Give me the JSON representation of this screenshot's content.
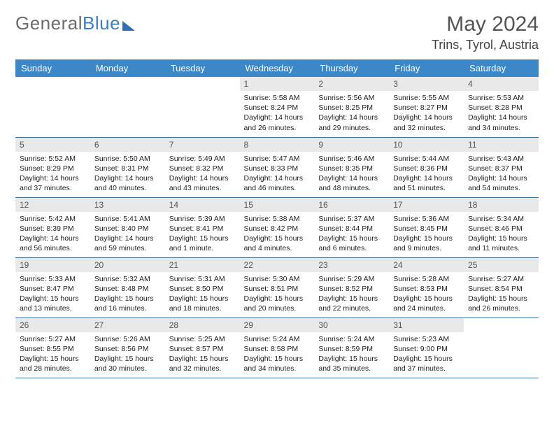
{
  "branding": {
    "word1": "General",
    "word2": "Blue"
  },
  "header": {
    "title": "May 2024",
    "location": "Trins, Tyrol, Austria"
  },
  "colors": {
    "header_bg": "#3b87c8",
    "header_text": "#ffffff",
    "daynum_bg": "#e9e9e9",
    "row_border": "#3b6fa0",
    "title_text": "#555555",
    "body_text": "#222222",
    "logo_gray": "#6b6b6b",
    "logo_blue": "#3b7fc4"
  },
  "weekdays": [
    "Sunday",
    "Monday",
    "Tuesday",
    "Wednesday",
    "Thursday",
    "Friday",
    "Saturday"
  ],
  "weeks": [
    [
      null,
      null,
      null,
      {
        "n": "1",
        "sr": "5:58 AM",
        "ss": "8:24 PM",
        "dl": "14 hours and 26 minutes."
      },
      {
        "n": "2",
        "sr": "5:56 AM",
        "ss": "8:25 PM",
        "dl": "14 hours and 29 minutes."
      },
      {
        "n": "3",
        "sr": "5:55 AM",
        "ss": "8:27 PM",
        "dl": "14 hours and 32 minutes."
      },
      {
        "n": "4",
        "sr": "5:53 AM",
        "ss": "8:28 PM",
        "dl": "14 hours and 34 minutes."
      }
    ],
    [
      {
        "n": "5",
        "sr": "5:52 AM",
        "ss": "8:29 PM",
        "dl": "14 hours and 37 minutes."
      },
      {
        "n": "6",
        "sr": "5:50 AM",
        "ss": "8:31 PM",
        "dl": "14 hours and 40 minutes."
      },
      {
        "n": "7",
        "sr": "5:49 AM",
        "ss": "8:32 PM",
        "dl": "14 hours and 43 minutes."
      },
      {
        "n": "8",
        "sr": "5:47 AM",
        "ss": "8:33 PM",
        "dl": "14 hours and 46 minutes."
      },
      {
        "n": "9",
        "sr": "5:46 AM",
        "ss": "8:35 PM",
        "dl": "14 hours and 48 minutes."
      },
      {
        "n": "10",
        "sr": "5:44 AM",
        "ss": "8:36 PM",
        "dl": "14 hours and 51 minutes."
      },
      {
        "n": "11",
        "sr": "5:43 AM",
        "ss": "8:37 PM",
        "dl": "14 hours and 54 minutes."
      }
    ],
    [
      {
        "n": "12",
        "sr": "5:42 AM",
        "ss": "8:39 PM",
        "dl": "14 hours and 56 minutes."
      },
      {
        "n": "13",
        "sr": "5:41 AM",
        "ss": "8:40 PM",
        "dl": "14 hours and 59 minutes."
      },
      {
        "n": "14",
        "sr": "5:39 AM",
        "ss": "8:41 PM",
        "dl": "15 hours and 1 minute."
      },
      {
        "n": "15",
        "sr": "5:38 AM",
        "ss": "8:42 PM",
        "dl": "15 hours and 4 minutes."
      },
      {
        "n": "16",
        "sr": "5:37 AM",
        "ss": "8:44 PM",
        "dl": "15 hours and 6 minutes."
      },
      {
        "n": "17",
        "sr": "5:36 AM",
        "ss": "8:45 PM",
        "dl": "15 hours and 9 minutes."
      },
      {
        "n": "18",
        "sr": "5:34 AM",
        "ss": "8:46 PM",
        "dl": "15 hours and 11 minutes."
      }
    ],
    [
      {
        "n": "19",
        "sr": "5:33 AM",
        "ss": "8:47 PM",
        "dl": "15 hours and 13 minutes."
      },
      {
        "n": "20",
        "sr": "5:32 AM",
        "ss": "8:48 PM",
        "dl": "15 hours and 16 minutes."
      },
      {
        "n": "21",
        "sr": "5:31 AM",
        "ss": "8:50 PM",
        "dl": "15 hours and 18 minutes."
      },
      {
        "n": "22",
        "sr": "5:30 AM",
        "ss": "8:51 PM",
        "dl": "15 hours and 20 minutes."
      },
      {
        "n": "23",
        "sr": "5:29 AM",
        "ss": "8:52 PM",
        "dl": "15 hours and 22 minutes."
      },
      {
        "n": "24",
        "sr": "5:28 AM",
        "ss": "8:53 PM",
        "dl": "15 hours and 24 minutes."
      },
      {
        "n": "25",
        "sr": "5:27 AM",
        "ss": "8:54 PM",
        "dl": "15 hours and 26 minutes."
      }
    ],
    [
      {
        "n": "26",
        "sr": "5:27 AM",
        "ss": "8:55 PM",
        "dl": "15 hours and 28 minutes."
      },
      {
        "n": "27",
        "sr": "5:26 AM",
        "ss": "8:56 PM",
        "dl": "15 hours and 30 minutes."
      },
      {
        "n": "28",
        "sr": "5:25 AM",
        "ss": "8:57 PM",
        "dl": "15 hours and 32 minutes."
      },
      {
        "n": "29",
        "sr": "5:24 AM",
        "ss": "8:58 PM",
        "dl": "15 hours and 34 minutes."
      },
      {
        "n": "30",
        "sr": "5:24 AM",
        "ss": "8:59 PM",
        "dl": "15 hours and 35 minutes."
      },
      {
        "n": "31",
        "sr": "5:23 AM",
        "ss": "9:00 PM",
        "dl": "15 hours and 37 minutes."
      },
      null
    ]
  ],
  "labels": {
    "sunrise": "Sunrise:",
    "sunset": "Sunset:",
    "daylight": "Daylight:"
  }
}
